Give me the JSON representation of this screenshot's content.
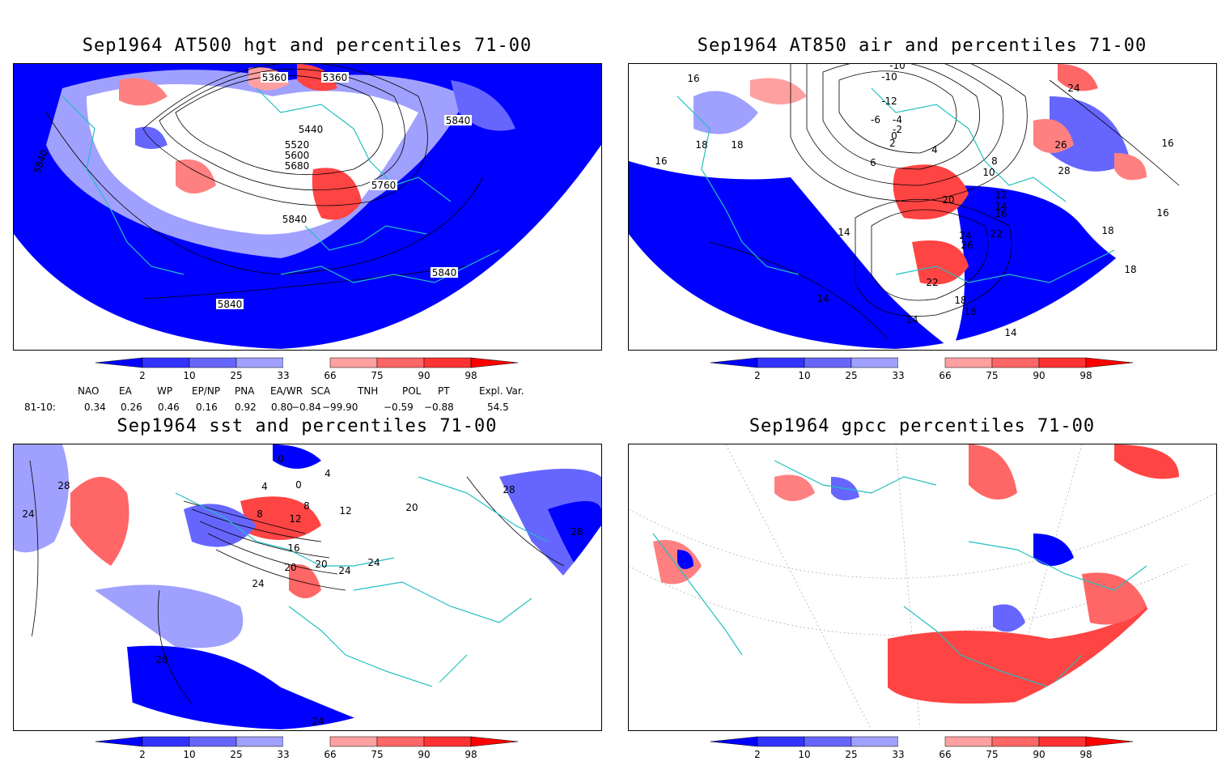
{
  "panels": [
    {
      "title": "Sep1964 AT500 hgt and percentiles 71-00",
      "contour_labels": [
        "5360",
        "5360",
        "5440",
        "5520",
        "5600",
        "5680",
        "5840",
        "5760",
        "5840",
        "5840",
        "5840",
        "5840"
      ]
    },
    {
      "title": "Sep1964 AT850 air and percentiles 71-00",
      "contour_labels": [
        "-10",
        "-10",
        "-12",
        "-6",
        "-4",
        "-2",
        "0",
        "2",
        "4",
        "6",
        "8",
        "10",
        "12",
        "14",
        "16",
        "16",
        "16",
        "18",
        "18",
        "18",
        "20",
        "22",
        "22",
        "24",
        "24",
        "26",
        "26",
        "28",
        "14",
        "14",
        "14",
        "14",
        "16",
        "18",
        "18",
        "16",
        "16"
      ]
    },
    {
      "title": "Sep1964 sst and percentiles 71-00",
      "contour_labels": [
        "28",
        "24",
        "28",
        "0",
        "4",
        "4",
        "0",
        "8",
        "8",
        "12",
        "12",
        "16",
        "20",
        "20",
        "20",
        "24",
        "24",
        "24",
        "28",
        "28",
        "24"
      ]
    },
    {
      "title": "Sep1964 gpcc percentiles 71-00",
      "contour_labels": []
    }
  ],
  "colorbar": {
    "ticks": [
      "2",
      "10",
      "25",
      "33",
      "66",
      "75",
      "90",
      "98"
    ],
    "colors": [
      "#0000ff",
      "#3333ff",
      "#6666ff",
      "#a0a0ff",
      "#ffffff",
      "#ffa0a0",
      "#ff6666",
      "#ff3333",
      "#ff0000"
    ]
  },
  "indices": {
    "headers": [
      "NAO",
      "EA",
      "WP",
      "EP/NP",
      "PNA",
      "EA/WR",
      "SCA",
      "TNH",
      "POL",
      "PT",
      "Expl. Var."
    ],
    "row_label": "81-10:",
    "values": [
      "0.34",
      "0.26",
      "0.46",
      "0.16",
      "0.92",
      "0.80",
      "−0.84",
      "−99.90",
      "−0.59",
      "−0.88",
      "54.5"
    ]
  },
  "colors": {
    "coast": "#22c0c0",
    "contour": "#000000"
  }
}
